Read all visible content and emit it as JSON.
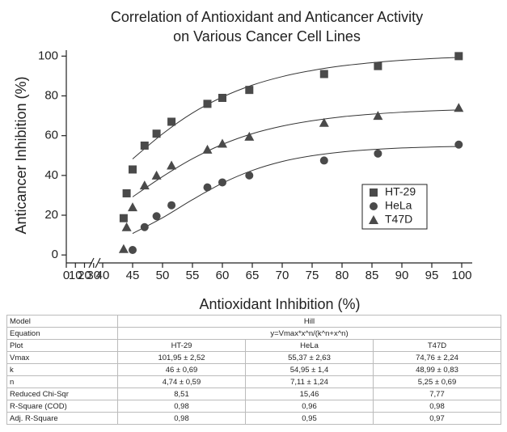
{
  "chart_data": {
    "type": "scatter",
    "title": [
      "Correlation of Antioxidant and Anticancer Activity",
      "on Various Cancer Cell Lines"
    ],
    "x_label": "Antioxidant Inhibition (%)",
    "y_label": "Anticancer Inhibition (%)",
    "xlim": [
      0,
      100
    ],
    "xbreak": 40,
    "xticks": [
      0,
      10,
      20,
      30,
      40,
      45,
      50,
      55,
      60,
      65,
      70,
      75,
      80,
      85,
      90,
      95,
      100
    ],
    "ylim": [
      -4,
      103
    ],
    "yticks": [
      0,
      20,
      40,
      60,
      80,
      100
    ],
    "legend": "center right",
    "fit_x": [
      45,
      50,
      55,
      60,
      65,
      70,
      75,
      80,
      85,
      90,
      95,
      100
    ],
    "series": [
      {
        "name": "HT-29",
        "color": "#4a4a4a",
        "marker": "square",
        "x": [
          43.5,
          44,
          45,
          47,
          49,
          51.5,
          57.5,
          60,
          64.5,
          77,
          86,
          99.5
        ],
        "values": [
          18.5,
          31,
          43,
          55,
          61,
          67,
          76,
          79,
          83,
          91,
          95,
          100
        ],
        "fit": [
          48.3,
          60.9,
          71.4,
          79.4,
          85.4,
          89.7,
          92.8,
          95.1,
          96.7,
          97.9,
          98.8,
          99.4
        ]
      },
      {
        "name": "HeLa",
        "color": "#4a4a4a",
        "marker": "circle",
        "x": [
          45,
          47,
          49,
          51.5,
          57.5,
          60,
          64.5,
          77,
          86,
          99.5
        ],
        "values": [
          2.5,
          14,
          19.5,
          25,
          34,
          36.5,
          40,
          47.5,
          51,
          55.5
        ],
        "fit": [
          10.8,
          18.7,
          27.8,
          36.1,
          42.5,
          47.0,
          49.9,
          51.8,
          53.0,
          53.8,
          54.3,
          54.6
        ]
      },
      {
        "name": "T47D",
        "color": "#4a4a4a",
        "marker": "triangle",
        "x": [
          43.5,
          44,
          45,
          47,
          49,
          51.5,
          57.5,
          60,
          64.5,
          77,
          86,
          99.5
        ],
        "values": [
          3,
          14,
          24,
          35,
          40,
          45,
          53,
          56,
          59.5,
          66.5,
          70,
          74
        ],
        "fit": [
          29.2,
          39.4,
          48.4,
          55.6,
          61.0,
          64.8,
          67.5,
          69.5,
          70.8,
          71.8,
          72.5,
          73.0
        ]
      }
    ]
  },
  "table": {
    "rows": [
      [
        "Model",
        "Hill"
      ],
      [
        "Equation",
        "y=Vmax*x^n/(k^n+x^n)"
      ],
      [
        "Plot",
        "HT-29",
        "HeLa",
        "T47D"
      ],
      [
        "Vmax",
        "101,95 ± 2,52",
        "55,37 ± 2,63",
        "74,76 ± 2,24"
      ],
      [
        "k",
        "46 ± 0,69",
        "54,95 ± 1,4",
        "48,99 ± 0,83"
      ],
      [
        "n",
        "4,74 ± 0,59",
        "7,11 ± 1,24",
        "5,25 ± 0,69"
      ],
      [
        "Reduced Chi-Sqr",
        "8,51",
        "15,46",
        "7,77"
      ],
      [
        "R-Square (COD)",
        "0,98",
        "0,96",
        "0,98"
      ],
      [
        "Adj. R-Square",
        "0,98",
        "0,95",
        "0,97"
      ]
    ]
  }
}
